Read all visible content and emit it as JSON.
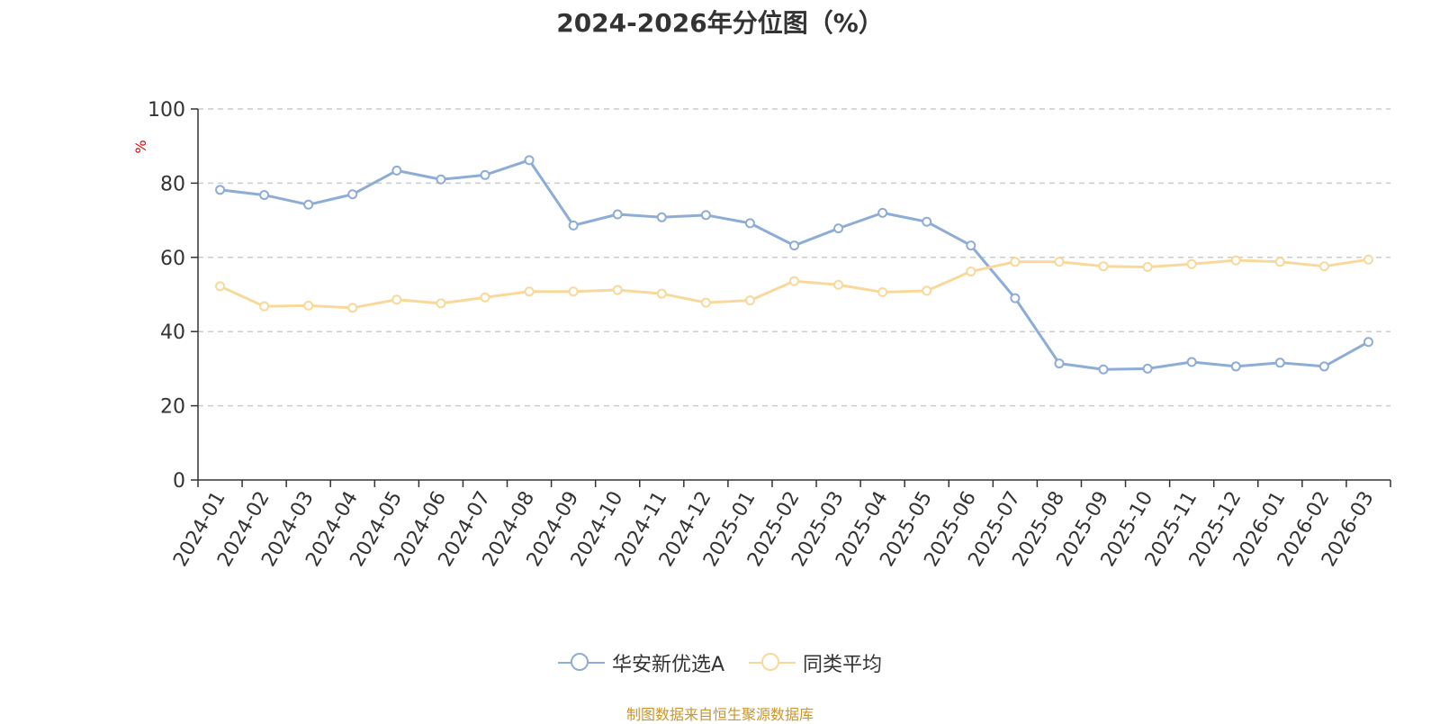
{
  "chart_data": {
    "type": "line",
    "title": "2024-2026年分位图（%）",
    "ylabel": "%",
    "ylim": [
      0,
      100
    ],
    "yticks": [
      0,
      20,
      40,
      60,
      80,
      100
    ],
    "grid": true,
    "legend_position": "bottom",
    "categories": [
      "2024-01",
      "2024-02",
      "2024-03",
      "2024-04",
      "2024-05",
      "2024-06",
      "2024-07",
      "2024-08",
      "2024-09",
      "2024-10",
      "2024-11",
      "2024-12",
      "2025-01",
      "2025-02",
      "2025-03",
      "2025-04",
      "2025-05",
      "2025-06",
      "2025-07",
      "2025-08",
      "2025-09",
      "2025-10",
      "2025-11",
      "2025-12",
      "2026-01",
      "2026-02",
      "2026-03"
    ],
    "series": [
      {
        "name": "华安新优选A",
        "color": "#8eadd6",
        "values": [
          78.2,
          76.8,
          74.2,
          77.0,
          83.4,
          81.0,
          82.2,
          86.2,
          68.6,
          71.6,
          70.8,
          71.4,
          69.2,
          63.2,
          67.8,
          72.0,
          69.6,
          63.2,
          49.0,
          31.4,
          29.8,
          30.0,
          31.8,
          30.6,
          31.6,
          30.6,
          37.2
        ]
      },
      {
        "name": "同类平均",
        "color": "#f9d99b",
        "values": [
          52.2,
          46.8,
          47.0,
          46.4,
          48.6,
          47.6,
          49.2,
          50.8,
          50.8,
          51.2,
          50.2,
          47.8,
          48.4,
          53.6,
          52.6,
          50.6,
          51.0,
          56.2,
          58.8,
          58.8,
          57.6,
          57.4,
          58.2,
          59.2,
          58.8,
          57.6,
          59.4
        ]
      }
    ]
  },
  "source": "制图数据来自恒生聚源数据库"
}
